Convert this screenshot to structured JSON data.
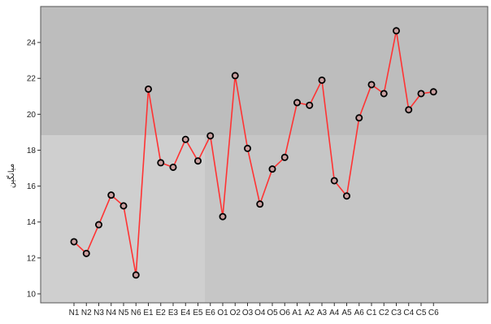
{
  "chart_data": {
    "type": "line",
    "categories": [
      "N1",
      "N2",
      "N3",
      "N4",
      "N5",
      "N6",
      "E1",
      "E2",
      "E3",
      "E4",
      "E5",
      "E6",
      "O1",
      "O2",
      "O3",
      "O4",
      "O5",
      "O6",
      "A1",
      "A2",
      "A3",
      "A4",
      "A5",
      "A6",
      "C1",
      "C2",
      "C3",
      "C4",
      "C5",
      "C6"
    ],
    "series": [
      {
        "values": [
          12.9,
          12.25,
          13.85,
          15.5,
          14.9,
          11.05,
          21.4,
          17.3,
          17.05,
          18.6,
          17.4,
          18.8,
          14.3,
          22.15,
          18.1,
          15.0,
          16.95,
          17.6,
          20.65,
          20.5,
          21.9,
          16.3,
          15.45,
          19.8,
          21.65,
          21.15,
          24.65,
          20.25,
          21.15,
          21.25
        ]
      }
    ],
    "title": "",
    "xlabel": "",
    "ylabel": "میانگین",
    "yticks": [
      10,
      12,
      14,
      16,
      18,
      20,
      22,
      24
    ],
    "ylim": [
      9.5,
      26
    ],
    "grid": false,
    "legend": "none",
    "colors": {
      "line": "#ff3333",
      "marker_fill": "#c9a0a0",
      "marker_edge": "#000000",
      "plot_background": "#c6c6c6"
    }
  }
}
